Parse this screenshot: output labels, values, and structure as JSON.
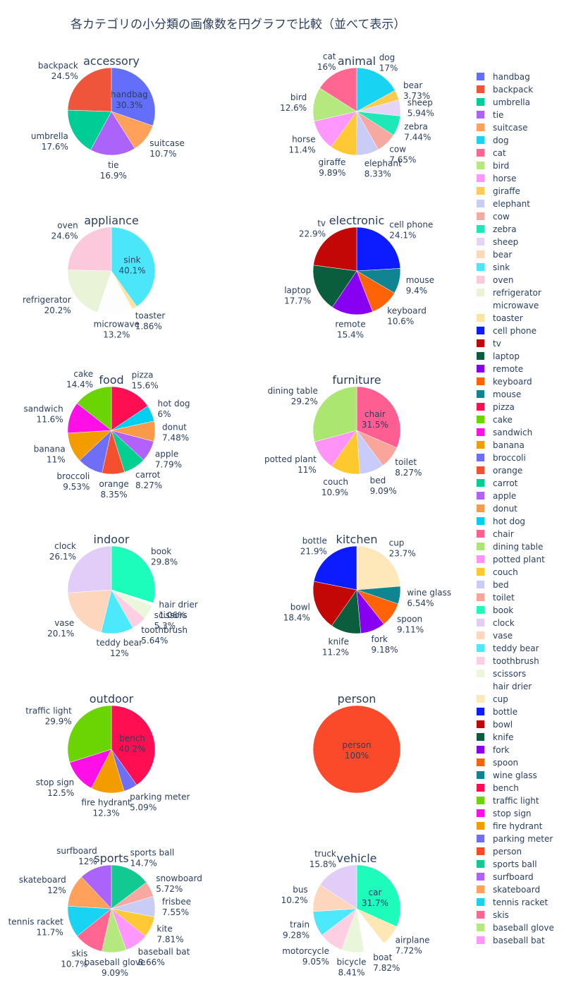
{
  "title": "各カテゴリの小分類の画像数を円グラフで比較（並べて表示）",
  "chart_data": [
    {
      "type": "pie",
      "title": "accessory",
      "slices": [
        {
          "label": "handbag",
          "value": 30.3,
          "color": "#636efa"
        },
        {
          "label": "suitcase",
          "value": 10.7,
          "color": "#ffa15a"
        },
        {
          "label": "tie",
          "value": 16.9,
          "color": "#ab63fa"
        },
        {
          "label": "umbrella",
          "value": 17.6,
          "color": "#00cc96"
        },
        {
          "label": "backpack",
          "value": 24.5,
          "color": "#ef553b"
        }
      ]
    },
    {
      "type": "pie",
      "title": "animal",
      "slices": [
        {
          "label": "dog",
          "value": 17,
          "color": "#19d3f3"
        },
        {
          "label": "bear",
          "value": 3.73,
          "color": "#fecb52"
        },
        {
          "label": "sheep",
          "value": 5.94,
          "color": "#e6d3f8"
        },
        {
          "label": "zebra",
          "value": 7.44,
          "color": "#1de9b6"
        },
        {
          "label": "cow",
          "value": 7.65,
          "color": "#f7a8a0"
        },
        {
          "label": "elephant",
          "value": 8.33,
          "color": "#c9cdf5"
        },
        {
          "label": "giraffe",
          "value": 9.89,
          "color": "#fec935"
        },
        {
          "label": "horse",
          "value": 11.4,
          "color": "#ff97ff"
        },
        {
          "label": "bird",
          "value": 12.6,
          "color": "#b6e880"
        },
        {
          "label": "cat",
          "value": 16,
          "color": "#ff6692"
        }
      ]
    },
    {
      "type": "pie",
      "title": "appliance",
      "slices": [
        {
          "label": "sink",
          "value": 40.1,
          "color": "#4ce6fb"
        },
        {
          "label": "toaster",
          "value": 1.86,
          "color": "#fde4a2"
        },
        {
          "label": "microwave",
          "value": 13.2,
          "color": "#fdfdfd"
        },
        {
          "label": "refrigerator",
          "value": 20.2,
          "color": "#e8f3d8"
        },
        {
          "label": "oven",
          "value": 24.6,
          "color": "#fcc9dc"
        }
      ]
    },
    {
      "type": "pie",
      "title": "electronic",
      "slices": [
        {
          "label": "cell phone",
          "value": 24.1,
          "color": "#0d1bff"
        },
        {
          "label": "mouse",
          "value": 9.4,
          "color": "#108491"
        },
        {
          "label": "keyboard",
          "value": 10.6,
          "color": "#ff6308"
        },
        {
          "label": "remote",
          "value": 15.4,
          "color": "#8800f1"
        },
        {
          "label": "laptop",
          "value": 17.7,
          "color": "#0a5e3e"
        },
        {
          "label": "tv",
          "value": 22.9,
          "color": "#c30706"
        }
      ]
    },
    {
      "type": "pie",
      "title": "food",
      "slices": [
        {
          "label": "pizza",
          "value": 15.6,
          "color": "#ff0f51"
        },
        {
          "label": "hot dog",
          "value": 6,
          "color": "#00cfef"
        },
        {
          "label": "donut",
          "value": 7.48,
          "color": "#f89a4a"
        },
        {
          "label": "apple",
          "value": 7.79,
          "color": "#b262fa"
        },
        {
          "label": "carrot",
          "value": 8.27,
          "color": "#03cf90"
        },
        {
          "label": "orange",
          "value": 8.35,
          "color": "#f4502f"
        },
        {
          "label": "broccoli",
          "value": 9.53,
          "color": "#6e6ef7"
        },
        {
          "label": "banana",
          "value": 11,
          "color": "#f39c00"
        },
        {
          "label": "sandwich",
          "value": 11.6,
          "color": "#ff0fe8"
        },
        {
          "label": "cake",
          "value": 14.4,
          "color": "#6ad503"
        }
      ]
    },
    {
      "type": "pie",
      "title": "furniture",
      "slices": [
        {
          "label": "chair",
          "value": 31.5,
          "color": "#ff5e92"
        },
        {
          "label": "toilet",
          "value": 8.27,
          "color": "#faa59a"
        },
        {
          "label": "bed",
          "value": 9.09,
          "color": "#c9ccf8"
        },
        {
          "label": "couch",
          "value": 10.9,
          "color": "#fec92e"
        },
        {
          "label": "potted plant",
          "value": 11,
          "color": "#ff93f6"
        },
        {
          "label": "dining table",
          "value": 29.2,
          "color": "#abe671"
        }
      ]
    },
    {
      "type": "pie",
      "title": "indoor",
      "slices": [
        {
          "label": "book",
          "value": 29.8,
          "color": "#1cfcbb"
        },
        {
          "label": "hair drier",
          "value": 1.06,
          "color": "#fdfdfd"
        },
        {
          "label": "scissors",
          "value": 5.3,
          "color": "#ebf7da"
        },
        {
          "label": "toothbrush",
          "value": 5.64,
          "color": "#fccfe3"
        },
        {
          "label": "teddy bear",
          "value": 12,
          "color": "#4ce8fb"
        },
        {
          "label": "vase",
          "value": 20.1,
          "color": "#fdd6bd"
        },
        {
          "label": "clock",
          "value": 26.1,
          "color": "#e2cdf9"
        }
      ]
    },
    {
      "type": "pie",
      "title": "kitchen",
      "slices": [
        {
          "label": "cup",
          "value": 23.7,
          "color": "#fee7b8"
        },
        {
          "label": "wine glass",
          "value": 6.54,
          "color": "#0f8592"
        },
        {
          "label": "spoon",
          "value": 9.11,
          "color": "#ff6308"
        },
        {
          "label": "fork",
          "value": 9.18,
          "color": "#8800f1"
        },
        {
          "label": "knife",
          "value": 11.2,
          "color": "#0a5e3e"
        },
        {
          "label": "bowl",
          "value": 18.4,
          "color": "#c30706"
        },
        {
          "label": "bottle",
          "value": 21.9,
          "color": "#0d1bff"
        }
      ]
    },
    {
      "type": "pie",
      "title": "outdoor",
      "slices": [
        {
          "label": "bench",
          "value": 40.2,
          "color": "#ff0f51"
        },
        {
          "label": "parking meter",
          "value": 5.09,
          "color": "#6e6ef7"
        },
        {
          "label": "fire hydrant",
          "value": 12.3,
          "color": "#f39c00"
        },
        {
          "label": "stop sign",
          "value": 12.5,
          "color": "#ff0fe8"
        },
        {
          "label": "traffic light",
          "value": 29.9,
          "color": "#6ad503"
        }
      ]
    },
    {
      "type": "pie",
      "title": "person",
      "slices": [
        {
          "label": "person",
          "value": 100,
          "color": "#fa4a2a"
        }
      ]
    },
    {
      "type": "pie",
      "title": "sports",
      "slices": [
        {
          "label": "sports ball",
          "value": 14.7,
          "color": "#12ca91"
        },
        {
          "label": "snowboard",
          "value": 5.72,
          "color": "#f7a8a0"
        },
        {
          "label": "frisbee",
          "value": 7.55,
          "color": "#c9cdf5"
        },
        {
          "label": "kite",
          "value": 7.81,
          "color": "#fec935"
        },
        {
          "label": "baseball bat",
          "value": 8.66,
          "color": "#ff97ff"
        },
        {
          "label": "baseball glove",
          "value": 9.09,
          "color": "#b6e880"
        },
        {
          "label": "skis",
          "value": 10.7,
          "color": "#ff6692"
        },
        {
          "label": "tennis racket",
          "value": 11.7,
          "color": "#19d3f3"
        },
        {
          "label": "skateboard",
          "value": 12,
          "color": "#ffa15a"
        },
        {
          "label": "surfboard",
          "value": 12,
          "color": "#ab63fa"
        }
      ]
    },
    {
      "type": "pie",
      "title": "vehicle",
      "slices": [
        {
          "label": "car",
          "value": 31.7,
          "color": "#1dfcbb"
        },
        {
          "label": "airplane",
          "value": 7.72,
          "color": "#fde7b5"
        },
        {
          "label": "boat",
          "value": 7.82,
          "color": "#fefefe"
        },
        {
          "label": "bicycle",
          "value": 8.41,
          "color": "#eaf6da"
        },
        {
          "label": "motorcycle",
          "value": 9.05,
          "color": "#fccfe3"
        },
        {
          "label": "train",
          "value": 9.28,
          "color": "#4ce8fb"
        },
        {
          "label": "bus",
          "value": 10.2,
          "color": "#fdd6bd"
        },
        {
          "label": "truck",
          "value": 15.8,
          "color": "#e2cdf9"
        }
      ]
    }
  ],
  "legend": [
    {
      "label": "handbag",
      "color": "#636efa"
    },
    {
      "label": "backpack",
      "color": "#ef553b"
    },
    {
      "label": "umbrella",
      "color": "#00cc96"
    },
    {
      "label": "tie",
      "color": "#ab63fa"
    },
    {
      "label": "suitcase",
      "color": "#ffa15a"
    },
    {
      "label": "dog",
      "color": "#19d3f3"
    },
    {
      "label": "cat",
      "color": "#ff6692"
    },
    {
      "label": "bird",
      "color": "#b6e880"
    },
    {
      "label": "horse",
      "color": "#ff97ff"
    },
    {
      "label": "giraffe",
      "color": "#fecb52"
    },
    {
      "label": "elephant",
      "color": "#c9cdf5"
    },
    {
      "label": "cow",
      "color": "#f7a8a0"
    },
    {
      "label": "zebra",
      "color": "#1de9b6"
    },
    {
      "label": "sheep",
      "color": "#e6d3f8"
    },
    {
      "label": "bear",
      "color": "#fdd9b8"
    },
    {
      "label": "sink",
      "color": "#4ce6fb"
    },
    {
      "label": "oven",
      "color": "#fcc9dc"
    },
    {
      "label": "refrigerator",
      "color": "#e8f3d8"
    },
    {
      "label": "microwave",
      "color": "#fdfdfd"
    },
    {
      "label": "toaster",
      "color": "#fde4a2"
    },
    {
      "label": "cell phone",
      "color": "#0d1bff"
    },
    {
      "label": "tv",
      "color": "#c30706"
    },
    {
      "label": "laptop",
      "color": "#0a5e3e"
    },
    {
      "label": "remote",
      "color": "#8800f1"
    },
    {
      "label": "keyboard",
      "color": "#ff6308"
    },
    {
      "label": "mouse",
      "color": "#108491"
    },
    {
      "label": "pizza",
      "color": "#ff0f51"
    },
    {
      "label": "cake",
      "color": "#6ad503"
    },
    {
      "label": "sandwich",
      "color": "#ff0fe8"
    },
    {
      "label": "banana",
      "color": "#f39c00"
    },
    {
      "label": "broccoli",
      "color": "#6e6ef7"
    },
    {
      "label": "orange",
      "color": "#f4502f"
    },
    {
      "label": "carrot",
      "color": "#03cf90"
    },
    {
      "label": "apple",
      "color": "#b262fa"
    },
    {
      "label": "donut",
      "color": "#f89a4a"
    },
    {
      "label": "hot dog",
      "color": "#00cfef"
    },
    {
      "label": "chair",
      "color": "#ff5e92"
    },
    {
      "label": "dining table",
      "color": "#abe671"
    },
    {
      "label": "potted plant",
      "color": "#ff93f6"
    },
    {
      "label": "couch",
      "color": "#fec92e"
    },
    {
      "label": "bed",
      "color": "#c9ccf8"
    },
    {
      "label": "toilet",
      "color": "#faa59a"
    },
    {
      "label": "book",
      "color": "#1cfcbb"
    },
    {
      "label": "clock",
      "color": "#e2cdf9"
    },
    {
      "label": "vase",
      "color": "#fdd6bd"
    },
    {
      "label": "teddy bear",
      "color": "#4ce8fb"
    },
    {
      "label": "toothbrush",
      "color": "#fccfe3"
    },
    {
      "label": "scissors",
      "color": "#ebf7da"
    },
    {
      "label": "hair drier",
      "color": "#fdfdfd"
    },
    {
      "label": "cup",
      "color": "#fee7b8"
    },
    {
      "label": "bottle",
      "color": "#0d1bff"
    },
    {
      "label": "bowl",
      "color": "#c30706"
    },
    {
      "label": "knife",
      "color": "#0a5e3e"
    },
    {
      "label": "fork",
      "color": "#8800f1"
    },
    {
      "label": "spoon",
      "color": "#ff6308"
    },
    {
      "label": "wine glass",
      "color": "#0f8592"
    },
    {
      "label": "bench",
      "color": "#ff0f51"
    },
    {
      "label": "traffic light",
      "color": "#6ad503"
    },
    {
      "label": "stop sign",
      "color": "#ff0fe8"
    },
    {
      "label": "fire hydrant",
      "color": "#f39c00"
    },
    {
      "label": "parking meter",
      "color": "#6e6ef7"
    },
    {
      "label": "person",
      "color": "#fa4a2a"
    },
    {
      "label": "sports ball",
      "color": "#12ca91"
    },
    {
      "label": "surfboard",
      "color": "#ab63fa"
    },
    {
      "label": "skateboard",
      "color": "#ffa15a"
    },
    {
      "label": "tennis racket",
      "color": "#19d3f3"
    },
    {
      "label": "skis",
      "color": "#ff6692"
    },
    {
      "label": "baseball glove",
      "color": "#b6e880"
    },
    {
      "label": "baseball bat",
      "color": "#ff97ff"
    }
  ]
}
